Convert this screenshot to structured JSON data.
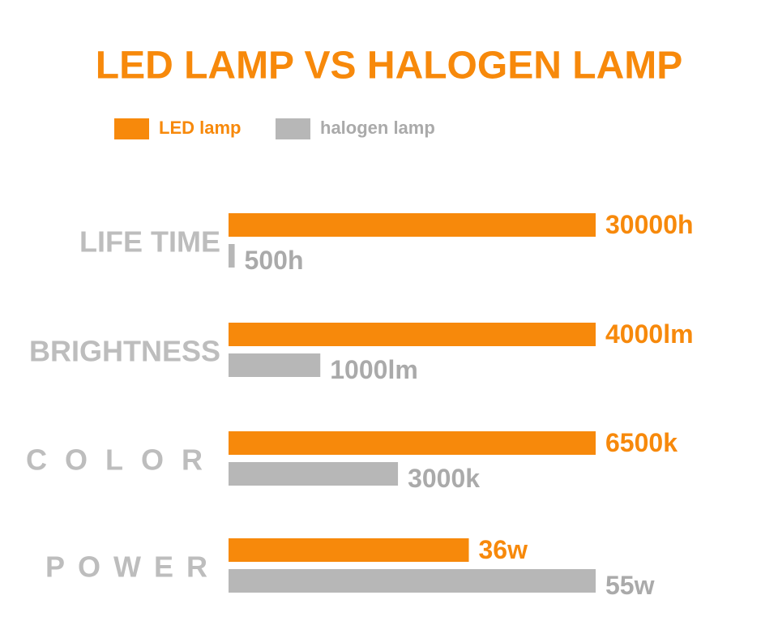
{
  "chart_data": {
    "type": "bar",
    "title": "LED LAMP VS HALOGEN LAMP",
    "categories": [
      "LIFE TIME",
      "BRIGHTNESS",
      "COLOR",
      "POWER"
    ],
    "series": [
      {
        "name": "LED lamp",
        "color": "#f7890b",
        "values": [
          30000,
          4000,
          6500,
          36
        ],
        "value_labels": [
          "30000h",
          "4000lm",
          "6500k",
          "36w"
        ]
      },
      {
        "name": "halogen lamp",
        "color": "#b7b7b7",
        "values": [
          500,
          1000,
          3000,
          55
        ],
        "value_labels": [
          "500h",
          "1000lm",
          "3000k",
          "55w"
        ]
      }
    ]
  }
}
